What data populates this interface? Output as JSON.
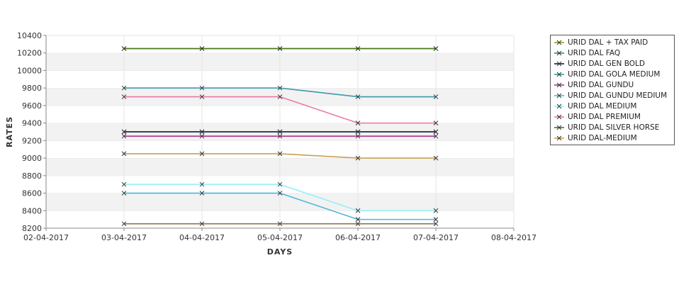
{
  "chart_data": {
    "type": "line",
    "xlabel": "DAYS",
    "ylabel": "RATES",
    "x_ticks": [
      "02-04-2017",
      "03-04-2017",
      "04-04-2017",
      "05-04-2017",
      "06-04-2017",
      "07-04-2017",
      "08-04-2017"
    ],
    "x": [
      "03-04-2017",
      "04-04-2017",
      "05-04-2017",
      "06-04-2017",
      "07-04-2017"
    ],
    "ylim": [
      8200,
      10400
    ],
    "y_ticks": [
      8200,
      8400,
      8600,
      8800,
      9000,
      9200,
      9400,
      9600,
      9800,
      10000,
      10200,
      10400
    ],
    "grid": "horizontal bands",
    "legend_position": "right",
    "series": [
      {
        "name": "URID DAL + TAX PAID",
        "color": "#8ca31e",
        "values": [
          10250,
          10250,
          10250,
          10250,
          10250
        ]
      },
      {
        "name": "URID DAL FAQ",
        "color": "#2e8b7a",
        "values": [
          9300,
          9300,
          9300,
          9300,
          9300
        ]
      },
      {
        "name": "URID DAL GEN BOLD",
        "color": "#1a1a3a",
        "values": [
          9300,
          9300,
          9300,
          9300,
          9300
        ]
      },
      {
        "name": "URID DAL GOLA MEDIUM",
        "color": "#3a9aa8",
        "values": [
          9800,
          9800,
          9800,
          9700,
          9700
        ]
      },
      {
        "name": "URID DAL GUNDU",
        "color": "#b0318f",
        "values": [
          9250,
          9250,
          9250,
          9250,
          9250
        ]
      },
      {
        "name": "URID DAL GUNDU MEDIUM",
        "color": "#4ab8d8",
        "values": [
          8600,
          8600,
          8600,
          8300,
          8300
        ]
      },
      {
        "name": "URID DAL MEDIUM",
        "color": "#98f0f8",
        "values": [
          8700,
          8700,
          8700,
          8400,
          8400
        ]
      },
      {
        "name": "URID DAL PREMIUM",
        "color": "#e878a8",
        "values": [
          9700,
          9700,
          9700,
          9400,
          9400
        ]
      },
      {
        "name": "URID DAL SILVER HORSE",
        "color": "#4a7a1a",
        "values": [
          10250,
          10250,
          10250,
          10250,
          10250
        ]
      },
      {
        "name": "URID DAL-MEDIUM",
        "color": "#c8a050",
        "values": [
          9050,
          9050,
          9050,
          9000,
          9000
        ]
      },
      {
        "name": "",
        "color": "#8a7a50",
        "values": [
          8250,
          8250,
          8250,
          8250,
          8250
        ]
      }
    ]
  }
}
